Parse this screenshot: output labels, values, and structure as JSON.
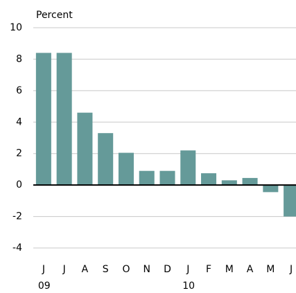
{
  "chart_data": {
    "type": "bar",
    "y_label": "Percent",
    "categories": [
      "J",
      "J",
      "A",
      "S",
      "O",
      "N",
      "D",
      "J",
      "F",
      "M",
      "A",
      "M",
      "J"
    ],
    "year_labels": [
      "09",
      null,
      null,
      null,
      null,
      null,
      null,
      "10",
      null,
      null,
      null,
      null,
      null
    ],
    "values": [
      8.4,
      8.4,
      4.6,
      3.3,
      2.05,
      0.9,
      0.9,
      2.2,
      0.75,
      0.3,
      0.45,
      -0.45,
      -2.0
    ],
    "color": "#659a99",
    "ylim": [
      -4,
      10
    ],
    "yticks": [
      -4,
      -2,
      0,
      2,
      4,
      6,
      8,
      10
    ],
    "grid": true
  }
}
